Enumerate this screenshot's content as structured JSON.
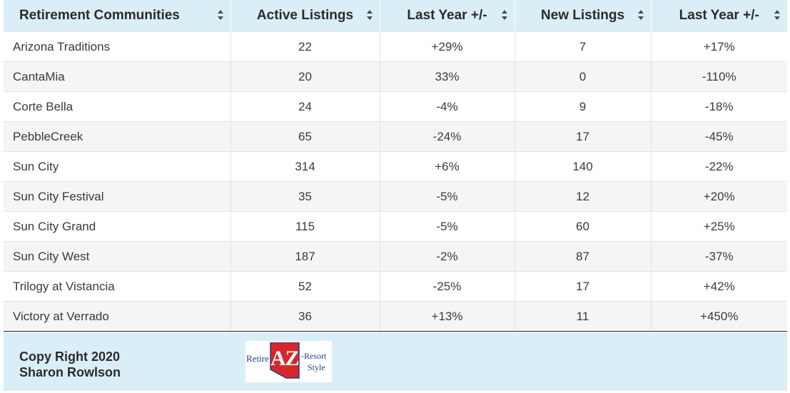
{
  "table": {
    "headers": [
      {
        "label": "Retirement Communities"
      },
      {
        "label": "Active Listings"
      },
      {
        "label": "Last Year +/-"
      },
      {
        "label": "New Listings"
      },
      {
        "label": "Last Year +/-"
      }
    ],
    "rows": [
      [
        "Arizona Traditions",
        "22",
        "+29%",
        "7",
        "+17%"
      ],
      [
        "CantaMia",
        "20",
        "33%",
        "0",
        "-110%"
      ],
      [
        "Corte Bella",
        "24",
        "-4%",
        "9",
        "-18%"
      ],
      [
        "PebbleCreek",
        "65",
        "-24%",
        "17",
        "-45%"
      ],
      [
        "Sun City",
        "314",
        "+6%",
        "140",
        "-22%"
      ],
      [
        "Sun City Festival",
        "35",
        "-5%",
        "12",
        "+20%"
      ],
      [
        "Sun City Grand",
        "115",
        "-5%",
        "60",
        "+25%"
      ],
      [
        "Sun City West",
        "187",
        "-2%",
        "87",
        "-37%"
      ],
      [
        "Trilogy at Vistancia",
        "52",
        "-25%",
        "17",
        "+42%"
      ],
      [
        "Victory at Verrado",
        "36",
        "+13%",
        "11",
        "+450%"
      ]
    ]
  },
  "footer": {
    "line1": "Copy Right 2020",
    "line2": "Sharon Rowlson",
    "logo": {
      "retire": "Retire",
      "az": "AZ",
      "resort": "-Resort",
      "style": "Style"
    }
  },
  "colors": {
    "header_bg": "#daeef7",
    "row_alt_bg": "#f5f5f5",
    "logo_red": "#d62828",
    "logo_blue": "#1f3f8a"
  },
  "icons": {
    "sort": "sort-up-down-icon"
  }
}
